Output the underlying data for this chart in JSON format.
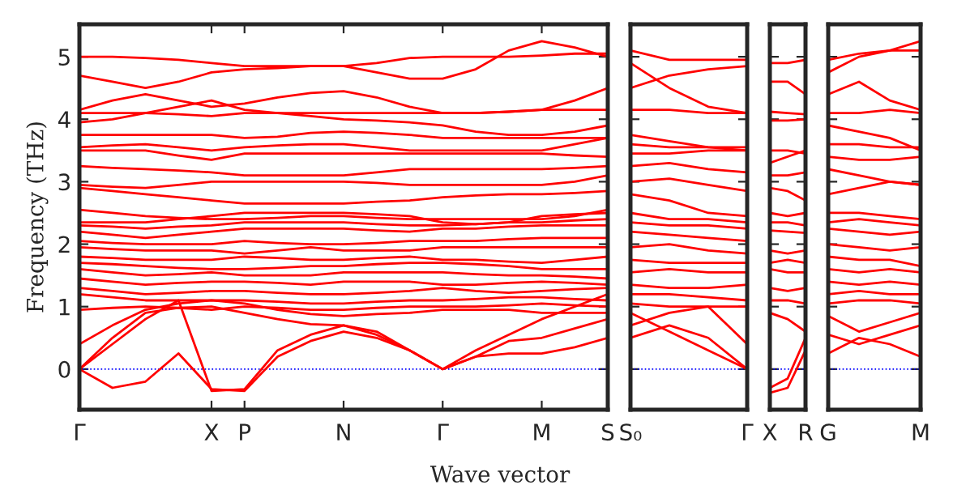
{
  "chart_data": [
    {
      "type": "line",
      "ylabel": "Frequency (THz)",
      "xlabel": "Wave vector",
      "ylim": [
        -0.65,
        5.52
      ],
      "yticks": [
        0,
        1,
        2,
        3,
        4,
        5
      ],
      "categories": [
        "Γ",
        null,
        null,
        null,
        "X",
        "P",
        null,
        null,
        "N",
        null,
        null,
        "Γ",
        null,
        null,
        "M",
        null,
        "S"
      ],
      "ref_lines": [
        {
          "axis": "y",
          "value": 0,
          "color": "#0000ff",
          "line_style": "dotted"
        }
      ],
      "series": [
        {
          "color": "#ff0000",
          "values": [
            5.0,
            5.0,
            4.98,
            4.95,
            4.9,
            4.85,
            4.85,
            4.85,
            4.85,
            4.9,
            4.98,
            5.0,
            5.0,
            5.0,
            5.02,
            5.05,
            5.05
          ]
        },
        {
          "color": "#ff0000",
          "values": [
            4.7,
            4.6,
            4.5,
            4.6,
            4.75,
            4.8,
            4.82,
            4.85,
            4.85,
            4.75,
            4.65,
            4.65,
            4.8,
            5.1,
            5.25,
            5.15,
            5.0
          ]
        },
        {
          "color": "#ff0000",
          "values": [
            4.15,
            4.3,
            4.4,
            4.3,
            4.2,
            4.25,
            4.35,
            4.42,
            4.45,
            4.35,
            4.2,
            4.1,
            4.1,
            4.12,
            4.15,
            4.3,
            4.5
          ]
        },
        {
          "color": "#ff0000",
          "values": [
            4.1,
            4.1,
            4.1,
            4.08,
            4.05,
            4.1,
            4.1,
            4.1,
            4.1,
            4.1,
            4.1,
            4.1,
            4.1,
            4.12,
            4.15,
            4.15,
            4.15
          ]
        },
        {
          "color": "#ff0000",
          "values": [
            3.95,
            4.0,
            4.1,
            4.2,
            4.3,
            4.15,
            4.1,
            4.05,
            4.0,
            3.98,
            3.95,
            3.9,
            3.8,
            3.75,
            3.75,
            3.8,
            3.9
          ]
        },
        {
          "color": "#ff0000",
          "values": [
            3.75,
            3.75,
            3.75,
            3.75,
            3.75,
            3.7,
            3.72,
            3.78,
            3.8,
            3.78,
            3.75,
            3.7,
            3.7,
            3.7,
            3.7,
            3.7,
            3.7
          ]
        },
        {
          "color": "#ff0000",
          "values": [
            3.55,
            3.58,
            3.6,
            3.55,
            3.5,
            3.55,
            3.58,
            3.6,
            3.6,
            3.55,
            3.5,
            3.5,
            3.5,
            3.5,
            3.5,
            3.6,
            3.7
          ]
        },
        {
          "color": "#ff0000",
          "values": [
            3.5,
            3.5,
            3.5,
            3.42,
            3.35,
            3.45,
            3.45,
            3.45,
            3.45,
            3.45,
            3.45,
            3.45,
            3.45,
            3.45,
            3.45,
            3.42,
            3.4
          ]
        },
        {
          "color": "#ff0000",
          "values": [
            3.25,
            3.22,
            3.2,
            3.18,
            3.15,
            3.1,
            3.1,
            3.1,
            3.1,
            3.15,
            3.2,
            3.2,
            3.2,
            3.2,
            3.2,
            3.22,
            3.25
          ]
        },
        {
          "color": "#ff0000",
          "values": [
            2.95,
            2.92,
            2.9,
            2.95,
            3.0,
            3.0,
            3.0,
            3.0,
            3.0,
            2.98,
            2.95,
            2.95,
            2.95,
            2.95,
            2.95,
            3.0,
            3.1
          ]
        },
        {
          "color": "#ff0000",
          "values": [
            2.9,
            2.85,
            2.8,
            2.75,
            2.7,
            2.65,
            2.65,
            2.65,
            2.65,
            2.68,
            2.7,
            2.75,
            2.78,
            2.8,
            2.8,
            2.82,
            2.85
          ]
        },
        {
          "color": "#ff0000",
          "values": [
            2.55,
            2.5,
            2.45,
            2.42,
            2.4,
            2.4,
            2.42,
            2.45,
            2.45,
            2.42,
            2.4,
            2.4,
            2.4,
            2.4,
            2.4,
            2.45,
            2.55
          ]
        },
        {
          "color": "#ff0000",
          "values": [
            2.35,
            2.35,
            2.35,
            2.4,
            2.45,
            2.5,
            2.5,
            2.5,
            2.5,
            2.48,
            2.45,
            2.35,
            2.32,
            2.35,
            2.45,
            2.48,
            2.5
          ]
        },
        {
          "color": "#ff0000",
          "values": [
            2.3,
            2.28,
            2.25,
            2.28,
            2.3,
            2.35,
            2.35,
            2.35,
            2.35,
            2.32,
            2.3,
            2.3,
            2.32,
            2.35,
            2.35,
            2.38,
            2.4
          ]
        },
        {
          "color": "#ff0000",
          "values": [
            2.2,
            2.15,
            2.1,
            2.15,
            2.2,
            2.25,
            2.25,
            2.25,
            2.25,
            2.22,
            2.2,
            2.25,
            2.25,
            2.28,
            2.3,
            2.3,
            2.3
          ]
        },
        {
          "color": "#ff0000",
          "values": [
            2.05,
            2.02,
            2.0,
            2.0,
            2.0,
            2.05,
            2.02,
            2.0,
            2.0,
            2.02,
            2.05,
            2.05,
            2.05,
            2.08,
            2.1,
            2.1,
            2.1
          ]
        },
        {
          "color": "#ff0000",
          "values": [
            1.95,
            1.92,
            1.9,
            1.9,
            1.9,
            1.85,
            1.9,
            1.95,
            1.9,
            1.9,
            1.9,
            1.95,
            1.95,
            1.95,
            1.95,
            1.95,
            1.95
          ]
        },
        {
          "color": "#ff0000",
          "values": [
            1.8,
            1.78,
            1.75,
            1.75,
            1.75,
            1.8,
            1.78,
            1.75,
            1.75,
            1.78,
            1.8,
            1.75,
            1.75,
            1.72,
            1.7,
            1.75,
            1.8
          ]
        },
        {
          "color": "#ff0000",
          "values": [
            1.7,
            1.68,
            1.65,
            1.62,
            1.6,
            1.6,
            1.62,
            1.65,
            1.65,
            1.68,
            1.7,
            1.7,
            1.68,
            1.65,
            1.6,
            1.6,
            1.6
          ]
        },
        {
          "color": "#ff0000",
          "values": [
            1.6,
            1.55,
            1.5,
            1.52,
            1.55,
            1.5,
            1.5,
            1.5,
            1.55,
            1.55,
            1.55,
            1.55,
            1.52,
            1.5,
            1.5,
            1.48,
            1.45
          ]
        },
        {
          "color": "#ff0000",
          "values": [
            1.45,
            1.4,
            1.35,
            1.38,
            1.4,
            1.4,
            1.38,
            1.35,
            1.4,
            1.4,
            1.4,
            1.35,
            1.35,
            1.38,
            1.4,
            1.38,
            1.35
          ]
        },
        {
          "color": "#ff0000",
          "values": [
            1.3,
            1.25,
            1.2,
            1.22,
            1.25,
            1.25,
            1.22,
            1.2,
            1.2,
            1.22,
            1.25,
            1.3,
            1.25,
            1.22,
            1.25,
            1.28,
            1.3
          ]
        },
        {
          "color": "#ff0000",
          "values": [
            1.2,
            1.15,
            1.1,
            1.1,
            1.1,
            1.1,
            1.08,
            1.05,
            1.05,
            1.08,
            1.1,
            1.1,
            1.12,
            1.15,
            1.15,
            1.12,
            1.1
          ]
        },
        {
          "color": "#ff0000",
          "values": [
            0.95,
            0.98,
            1.0,
            0.98,
            0.95,
            1.0,
            0.98,
            0.95,
            0.95,
            0.98,
            1.0,
            1.0,
            1.0,
            1.02,
            1.05,
            1.02,
            1.0
          ]
        },
        {
          "color": "#ff0000",
          "values": [
            0.4,
            0.7,
            0.95,
            1.05,
            1.1,
            1.05,
            0.95,
            0.88,
            0.85,
            0.88,
            0.9,
            0.95,
            0.95,
            0.95,
            0.9,
            0.9,
            0.9
          ]
        },
        {
          "color": "#ff0000",
          "values": [
            0,
            0.5,
            0.9,
            0.98,
            1.0,
            0.9,
            0.8,
            0.72,
            0.7,
            0.6,
            0.3,
            0,
            0.2,
            0.45,
            0.5,
            0.65,
            0.8
          ]
        },
        {
          "color": "#ff0000",
          "values": [
            0,
            -0.3,
            -0.2,
            0.25,
            -0.32,
            -0.35,
            0.2,
            0.45,
            0.6,
            0.5,
            0.3,
            0,
            0.2,
            0.25,
            0.25,
            0.35,
            0.5
          ]
        },
        {
          "color": "#ff0000",
          "values": [
            0,
            0.4,
            0.8,
            1.1,
            -0.35,
            -0.32,
            0.3,
            0.55,
            0.7,
            0.55,
            0.3,
            0,
            0.3,
            0.55,
            0.8,
            1.0,
            1.2
          ]
        }
      ]
    },
    {
      "type": "line",
      "tick_labels": "x",
      "ylim": [
        -0.65,
        5.52
      ],
      "yticks": [
        0,
        1,
        2,
        3,
        4,
        5
      ],
      "categories": [
        "S₀",
        null,
        null,
        "Γ"
      ],
      "ref_lines": [
        {
          "axis": "y",
          "value": 0,
          "color": "#0000ff",
          "line_style": "dotted"
        }
      ],
      "series": [
        {
          "color": "#ff0000",
          "values": [
            5.1,
            4.95,
            4.95,
            4.95
          ]
        },
        {
          "color": "#ff0000",
          "values": [
            4.9,
            4.5,
            4.2,
            4.1
          ]
        },
        {
          "color": "#ff0000",
          "values": [
            4.5,
            4.7,
            4.8,
            4.85
          ]
        },
        {
          "color": "#ff0000",
          "values": [
            4.15,
            4.15,
            4.1,
            4.1
          ]
        },
        {
          "color": "#ff0000",
          "values": [
            3.75,
            3.65,
            3.55,
            3.5
          ]
        },
        {
          "color": "#ff0000",
          "values": [
            3.6,
            3.55,
            3.55,
            3.55
          ]
        },
        {
          "color": "#ff0000",
          "values": [
            3.45,
            3.45,
            3.5,
            3.5
          ]
        },
        {
          "color": "#ff0000",
          "values": [
            3.25,
            3.3,
            3.2,
            3.15
          ]
        },
        {
          "color": "#ff0000",
          "values": [
            3.0,
            3.05,
            2.95,
            2.85
          ]
        },
        {
          "color": "#ff0000",
          "values": [
            2.8,
            2.7,
            2.5,
            2.45
          ]
        },
        {
          "color": "#ff0000",
          "values": [
            2.5,
            2.4,
            2.4,
            2.35
          ]
        },
        {
          "color": "#ff0000",
          "values": [
            2.35,
            2.3,
            2.3,
            2.25
          ]
        },
        {
          "color": "#ff0000",
          "values": [
            2.2,
            2.15,
            2.1,
            2.05
          ]
        },
        {
          "color": "#ff0000",
          "values": [
            1.95,
            2.0,
            1.9,
            1.85
          ]
        },
        {
          "color": "#ff0000",
          "values": [
            1.75,
            1.7,
            1.7,
            1.7
          ]
        },
        {
          "color": "#ff0000",
          "values": [
            1.55,
            1.6,
            1.55,
            1.55
          ]
        },
        {
          "color": "#ff0000",
          "values": [
            1.35,
            1.3,
            1.3,
            1.35
          ]
        },
        {
          "color": "#ff0000",
          "values": [
            1.2,
            1.2,
            1.15,
            1.1
          ]
        },
        {
          "color": "#ff0000",
          "values": [
            1.05,
            1.0,
            1.0,
            1.0
          ]
        },
        {
          "color": "#ff0000",
          "values": [
            0.7,
            0.9,
            1.0,
            0.4
          ]
        },
        {
          "color": "#ff0000",
          "values": [
            0.5,
            0.7,
            0.5,
            0
          ]
        },
        {
          "color": "#ff0000",
          "values": [
            0.9,
            0.6,
            0.3,
            0
          ]
        }
      ]
    },
    {
      "type": "line",
      "tick_labels": "x",
      "ylim": [
        -0.65,
        5.52
      ],
      "yticks": [
        0,
        1,
        2,
        3,
        4,
        5
      ],
      "categories": [
        "X",
        null,
        "R"
      ],
      "ref_lines": [
        {
          "axis": "y",
          "value": 0,
          "color": "#0000ff",
          "line_style": "dotted"
        }
      ],
      "series": [
        {
          "color": "#ff0000",
          "values": [
            4.9,
            4.9,
            4.95
          ]
        },
        {
          "color": "#ff0000",
          "values": [
            4.6,
            4.6,
            4.4
          ]
        },
        {
          "color": "#ff0000",
          "values": [
            4.12,
            4.1,
            4.08
          ]
        },
        {
          "color": "#ff0000",
          "values": [
            3.98,
            3.98,
            4.0
          ]
        },
        {
          "color": "#ff0000",
          "values": [
            3.5,
            3.5,
            3.45
          ]
        },
        {
          "color": "#ff0000",
          "values": [
            3.3,
            3.4,
            3.5
          ]
        },
        {
          "color": "#ff0000",
          "values": [
            3.1,
            3.1,
            3.15
          ]
        },
        {
          "color": "#ff0000",
          "values": [
            2.9,
            2.85,
            2.7
          ]
        },
        {
          "color": "#ff0000",
          "values": [
            2.5,
            2.45,
            2.5
          ]
        },
        {
          "color": "#ff0000",
          "values": [
            2.35,
            2.35,
            2.3
          ]
        },
        {
          "color": "#ff0000",
          "values": [
            2.22,
            2.2,
            2.18
          ]
        },
        {
          "color": "#ff0000",
          "values": [
            1.9,
            1.85,
            1.9
          ]
        },
        {
          "color": "#ff0000",
          "values": [
            1.7,
            1.75,
            1.7
          ]
        },
        {
          "color": "#ff0000",
          "values": [
            1.6,
            1.55,
            1.55
          ]
        },
        {
          "color": "#ff0000",
          "values": [
            1.3,
            1.25,
            1.3
          ]
        },
        {
          "color": "#ff0000",
          "values": [
            1.1,
            1.1,
            1.05
          ]
        },
        {
          "color": "#ff0000",
          "values": [
            0.9,
            0.8,
            0.6
          ]
        },
        {
          "color": "#ff0000",
          "values": [
            -0.38,
            -0.3,
            0.3
          ]
        },
        {
          "color": "#ff0000",
          "values": [
            -0.3,
            -0.15,
            0.5
          ]
        }
      ]
    },
    {
      "type": "line",
      "tick_labels": "x",
      "ylim": [
        -0.65,
        5.52
      ],
      "yticks": [
        0,
        1,
        2,
        3,
        4,
        5
      ],
      "categories": [
        "G",
        null,
        null,
        "M"
      ],
      "ref_lines": [
        {
          "axis": "y",
          "value": 0,
          "color": "#0000ff",
          "line_style": "dotted"
        }
      ],
      "series": [
        {
          "color": "#ff0000",
          "values": [
            4.95,
            5.05,
            5.1,
            5.25
          ]
        },
        {
          "color": "#ff0000",
          "values": [
            4.75,
            5.0,
            5.1,
            5.1
          ]
        },
        {
          "color": "#ff0000",
          "values": [
            4.4,
            4.6,
            4.3,
            4.15
          ]
        },
        {
          "color": "#ff0000",
          "values": [
            4.1,
            4.1,
            4.15,
            4.1
          ]
        },
        {
          "color": "#ff0000",
          "values": [
            3.9,
            3.8,
            3.7,
            3.5
          ]
        },
        {
          "color": "#ff0000",
          "values": [
            3.6,
            3.6,
            3.55,
            3.55
          ]
        },
        {
          "color": "#ff0000",
          "values": [
            3.4,
            3.35,
            3.35,
            3.4
          ]
        },
        {
          "color": "#ff0000",
          "values": [
            3.2,
            3.1,
            3.0,
            2.95
          ]
        },
        {
          "color": "#ff0000",
          "values": [
            2.8,
            2.9,
            3.0,
            2.95
          ]
        },
        {
          "color": "#ff0000",
          "values": [
            2.5,
            2.5,
            2.45,
            2.4
          ]
        },
        {
          "color": "#ff0000",
          "values": [
            2.35,
            2.4,
            2.35,
            2.3
          ]
        },
        {
          "color": "#ff0000",
          "values": [
            2.25,
            2.2,
            2.15,
            2.2
          ]
        },
        {
          "color": "#ff0000",
          "values": [
            2.0,
            1.95,
            1.9,
            1.95
          ]
        },
        {
          "color": "#ff0000",
          "values": [
            1.8,
            1.75,
            1.75,
            1.65
          ]
        },
        {
          "color": "#ff0000",
          "values": [
            1.6,
            1.55,
            1.6,
            1.55
          ]
        },
        {
          "color": "#ff0000",
          "values": [
            1.4,
            1.35,
            1.4,
            1.35
          ]
        },
        {
          "color": "#ff0000",
          "values": [
            1.2,
            1.25,
            1.2,
            1.2
          ]
        },
        {
          "color": "#ff0000",
          "values": [
            1.05,
            1.1,
            1.1,
            1.05
          ]
        },
        {
          "color": "#ff0000",
          "values": [
            0.85,
            0.6,
            0.75,
            0.9
          ]
        },
        {
          "color": "#ff0000",
          "values": [
            0.55,
            0.4,
            0.55,
            0.7
          ]
        },
        {
          "color": "#ff0000",
          "values": [
            0.25,
            0.5,
            0.4,
            0.2
          ]
        }
      ]
    }
  ]
}
